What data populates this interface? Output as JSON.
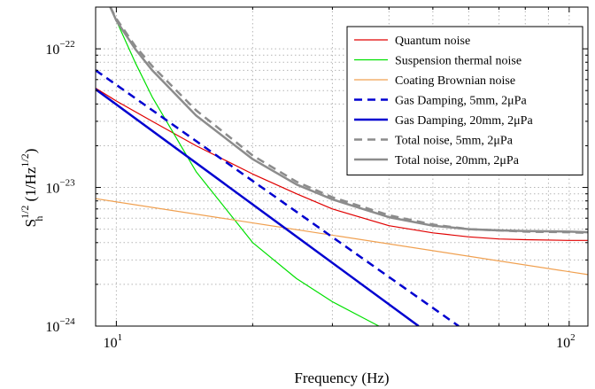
{
  "chart_data": {
    "type": "line",
    "title": "",
    "xlabel": "Frequency (Hz)",
    "ylabel": {
      "main": "S",
      "sup": "1/2",
      "sub": "h",
      "units_open": " (1/Hz",
      "units_sup": "1/2",
      "units_close": ")"
    },
    "x_scale": "log",
    "y_scale": "log",
    "xlim": [
      9,
      110
    ],
    "ylim": [
      1e-24,
      2e-22
    ],
    "grid": true,
    "legend_position": "top-right",
    "x_ticks": [
      {
        "value": 10,
        "base": "10",
        "exp": "1"
      },
      {
        "value": 100,
        "base": "10",
        "exp": "2"
      }
    ],
    "y_ticks": [
      {
        "value": 1e-24,
        "base": "10",
        "exp": "−24"
      },
      {
        "value": 1e-23,
        "base": "10",
        "exp": "−23"
      },
      {
        "value": 1e-22,
        "base": "10",
        "exp": "−22"
      }
    ],
    "series": [
      {
        "name": "Quantum noise",
        "color": "#e00000",
        "width": 1.2,
        "dash": "",
        "x": [
          9,
          10,
          12,
          15,
          20,
          25,
          30,
          40,
          50,
          60,
          70,
          80,
          100,
          110
        ],
        "y": [
          5.2e-23,
          4.2e-23,
          3e-23,
          2e-23,
          1.25e-23,
          9e-24,
          7e-24,
          5.3e-24,
          4.7e-24,
          4.4e-24,
          4.25e-24,
          4.2e-24,
          4.15e-24,
          4.15e-24
        ]
      },
      {
        "name": "Suspension thermal noise",
        "color": "#00e000",
        "width": 1.2,
        "dash": "",
        "x": [
          9.7,
          10,
          11,
          12,
          15,
          20,
          25,
          30,
          35,
          38
        ],
        "y": [
          2e-22,
          1.6e-22,
          8e-23,
          4.5e-23,
          1.3e-23,
          4e-24,
          2.2e-24,
          1.5e-24,
          1.15e-24,
          1e-24
        ]
      },
      {
        "name": "Coating Brownian noise",
        "color": "#f0a050",
        "width": 1.2,
        "dash": "",
        "x": [
          9,
          110
        ],
        "y": [
          8.3e-24,
          2.35e-24
        ]
      },
      {
        "name": "Gas Damping, 5mm, 2μPa",
        "color": "#0000d0",
        "width": 2.5,
        "dash": "9 6",
        "x": [
          9,
          57
        ],
        "y": [
          7e-23,
          1e-24
        ]
      },
      {
        "name": "Gas Damping, 20mm, 2μPa",
        "color": "#0000d0",
        "width": 2.5,
        "dash": "",
        "x": [
          9,
          46.5
        ],
        "y": [
          5.1e-23,
          1e-24
        ]
      },
      {
        "name": "Total noise, 5mm, 2μPa",
        "color": "#8c8c8c",
        "width": 2.5,
        "dash": "9 6",
        "x": [
          9.7,
          10,
          11,
          12,
          15,
          20,
          25,
          30,
          40,
          50,
          60,
          70,
          80,
          100,
          110
        ],
        "y": [
          2e-22,
          1.65e-22,
          1.05e-22,
          7.5e-23,
          3.6e-23,
          1.7e-23,
          1.1e-23,
          8.5e-24,
          6.3e-24,
          5.4e-24,
          5e-24,
          4.9e-24,
          4.8e-24,
          4.75e-24,
          4.7e-24
        ]
      },
      {
        "name": "Total noise, 20mm, 2μPa",
        "color": "#8c8c8c",
        "width": 2.5,
        "dash": "",
        "x": [
          9.7,
          10,
          11,
          12,
          15,
          20,
          25,
          30,
          40,
          50,
          60,
          70,
          80,
          100,
          110
        ],
        "y": [
          2e-22,
          1.6e-22,
          1e-22,
          7e-23,
          3.3e-23,
          1.6e-23,
          1.05e-23,
          8.2e-24,
          6.1e-24,
          5.3e-24,
          5e-24,
          4.9e-24,
          4.85e-24,
          4.8e-24,
          4.75e-24
        ]
      }
    ]
  }
}
